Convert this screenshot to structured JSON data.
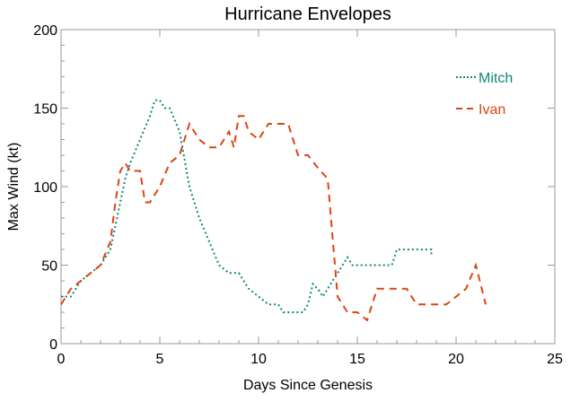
{
  "chart_data": {
    "type": "line",
    "title": "Hurricane Envelopes",
    "xlabel": "Days Since Genesis",
    "ylabel": "Max Wind (kt)",
    "xlim": [
      0,
      25
    ],
    "ylim": [
      0,
      200
    ],
    "xticks": [
      "0",
      "5",
      "10",
      "15",
      "20",
      "25"
    ],
    "yticks": [
      "0",
      "50",
      "100",
      "150",
      "200"
    ],
    "grid": false,
    "legend_position": "top-right",
    "series": [
      {
        "name": "Mitch",
        "color": "#118877",
        "style": "dotted",
        "x": [
          0,
          0.5,
          1,
          1.5,
          2,
          2.5,
          3,
          3.25,
          3.5,
          4,
          4.5,
          4.75,
          5,
          5.25,
          5.5,
          6,
          6.5,
          7,
          7.5,
          8,
          8.5,
          9,
          9.5,
          10,
          10.5,
          11,
          11.25,
          12.25,
          12.5,
          12.75,
          13,
          13.25,
          13.5,
          14,
          14.5,
          14.75,
          16.75,
          17,
          18.75,
          18.75
        ],
        "y": [
          30,
          30,
          40,
          45,
          50,
          60,
          90,
          105,
          115,
          130,
          145,
          155,
          155,
          150,
          150,
          135,
          100,
          80,
          65,
          50,
          45,
          45,
          35,
          30,
          25,
          25,
          20,
          20,
          25,
          38,
          35,
          30,
          35,
          45,
          55,
          50,
          50,
          60,
          60,
          57
        ]
      },
      {
        "name": "Ivan",
        "color": "#dd4411",
        "style": "dashed",
        "x": [
          0,
          0.5,
          1,
          1.5,
          2,
          2.5,
          2.75,
          3,
          3.25,
          3.5,
          4,
          4.25,
          4.5,
          5,
          5.5,
          6,
          6.5,
          7,
          7.5,
          8,
          8.5,
          8.75,
          9,
          9.25,
          9.5,
          10,
          10.5,
          11,
          11.5,
          12,
          12.5,
          13,
          13.5,
          14,
          14.5,
          15,
          15.5,
          16,
          17,
          17.5,
          18,
          19,
          19.5,
          20.5,
          21,
          21.5
        ],
        "y": [
          25,
          35,
          40,
          45,
          50,
          65,
          90,
          110,
          115,
          110,
          110,
          90,
          90,
          100,
          115,
          120,
          140,
          130,
          125,
          125,
          135,
          125,
          145,
          145,
          135,
          130,
          140,
          140,
          140,
          120,
          120,
          112,
          105,
          30,
          20,
          20,
          15,
          35,
          35,
          35,
          25,
          25,
          25,
          35,
          50,
          25
        ]
      }
    ]
  }
}
